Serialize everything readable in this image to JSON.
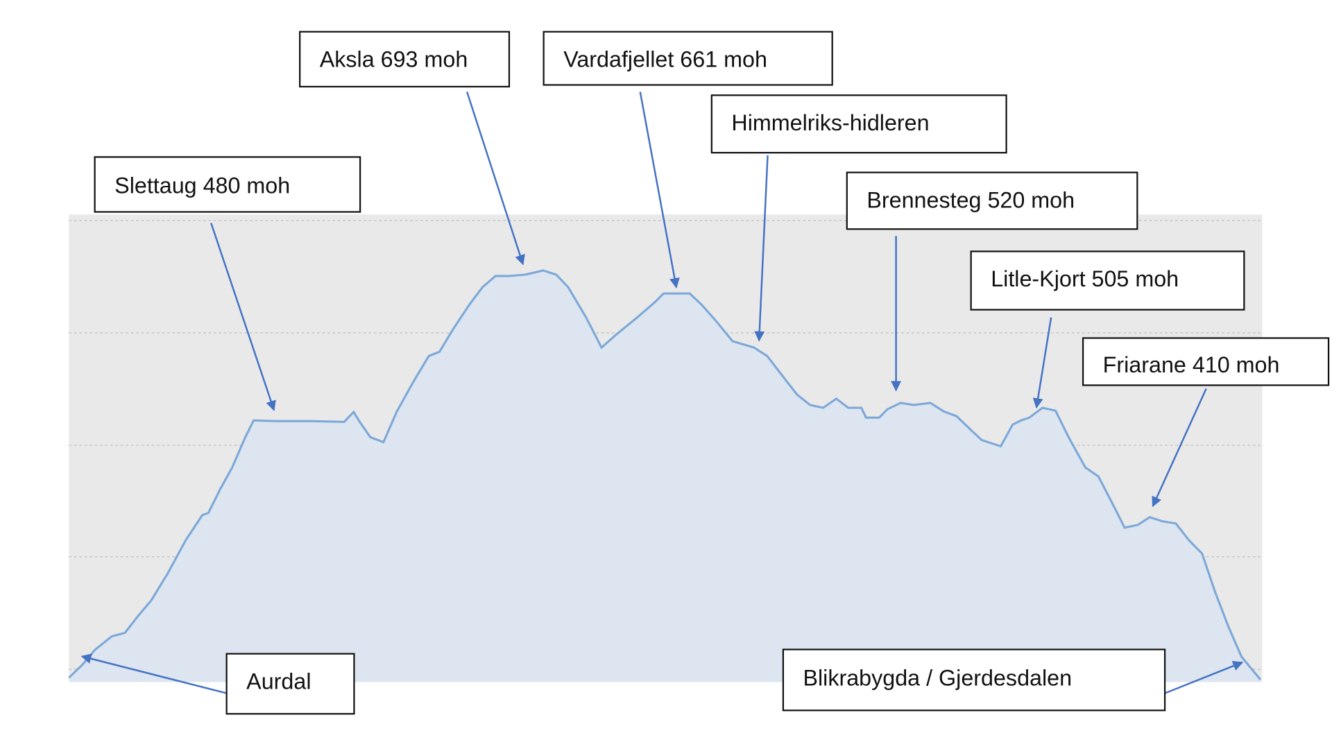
{
  "chart_data": {
    "type": "area",
    "title": "",
    "xlabel": "",
    "ylabel": "",
    "grid": true,
    "colors": {
      "plot_background": "#e9e9e9",
      "fill": "#dce5f0",
      "line": "#7ca8d8",
      "arrow": "#4472c4",
      "gridline": "#c4c4c4"
    },
    "series": [
      {
        "x": [
          0,
          1.1,
          2.2,
          3.6,
          4.7,
          5.8,
          6.9,
          8.3,
          9.8,
          11.2,
          11.7,
          12.7,
          13.7,
          14.8,
          15.5,
          17.4,
          20.2,
          23.1,
          23.9,
          24.4,
          25.3,
          26.4,
          27.5,
          28.9,
          30.2,
          31.1,
          32.2,
          33.6,
          34.7,
          35.8,
          36.9,
          38.3,
          39.8,
          40.9,
          41.9,
          43.4,
          44.7,
          45.9,
          47.7,
          49.2,
          49.9,
          52.1,
          53.1,
          54.2,
          55.7,
          57.5,
          58.6,
          60.0,
          61.1,
          62.2,
          63.3,
          64.4,
          65.4,
          66.5,
          66.9,
          68.0,
          68.7,
          69.8,
          70.9,
          72.3,
          73.4,
          74.5,
          75.6,
          76.6,
          78.2,
          79.2,
          79.9,
          80.6,
          81.7,
          82.8,
          83.9,
          85.3,
          86.4,
          87.5,
          88.6,
          89.7,
          90.7,
          91.8,
          92.9,
          94.0,
          95.1,
          96.2,
          97.3,
          98.4,
          100
        ],
        "y": [
          113,
          131,
          153,
          172,
          177,
          201,
          223,
          262,
          309,
          345,
          348,
          382,
          413,
          456,
          480,
          479,
          479,
          478,
          492,
          478,
          456,
          449,
          492,
          535,
          572,
          578,
          609,
          645,
          670,
          686,
          686,
          688,
          694,
          688,
          670,
          627,
          584,
          602,
          627,
          649,
          661,
          661,
          645,
          624,
          593,
          584,
          572,
          541,
          517,
          502,
          498,
          511,
          498,
          498,
          484,
          484,
          496,
          505,
          502,
          505,
          493,
          486,
          468,
          452,
          443,
          474,
          480,
          484,
          498,
          494,
          456,
          413,
          400,
          364,
          327,
          331,
          342,
          336,
          333,
          309,
          290,
          235,
          186,
          143,
          110
        ]
      }
    ],
    "annotations": [
      {
        "label": "Slettaug 480 moh"
      },
      {
        "label": "Aksla 693 moh"
      },
      {
        "label": "Vardafjellet 661 moh"
      },
      {
        "label": "Himmelriks-hidleren"
      },
      {
        "label": "Brennesteg 520 moh"
      },
      {
        "label": "Litle-Kjort 505 moh"
      },
      {
        "label": "Friarane 410 moh"
      },
      {
        "label": "Aurdal"
      },
      {
        "label": "Blikrabygda / Gjerdesdalen"
      }
    ]
  }
}
